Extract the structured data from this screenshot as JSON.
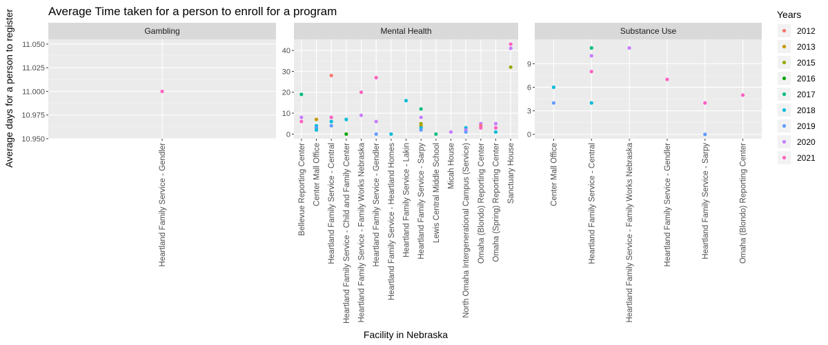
{
  "chart_data": {
    "type": "scatter",
    "title": "Average Time taken for a person to enroll for a program",
    "xlabel": "Facility in Nebraska",
    "ylabel": "Average days for a person to register",
    "legend": {
      "title": "Years",
      "position": "right",
      "entries": [
        {
          "label": "2012",
          "color": "#F8766D"
        },
        {
          "label": "2013",
          "color": "#C49A00"
        },
        {
          "label": "2015",
          "color": "#99A800"
        },
        {
          "label": "2016",
          "color": "#00A600"
        },
        {
          "label": "2017",
          "color": "#00BF7D"
        },
        {
          "label": "2018",
          "color": "#00BCD8"
        },
        {
          "label": "2019",
          "color": "#619CFF"
        },
        {
          "label": "2020",
          "color": "#C77CFF"
        },
        {
          "label": "2021",
          "color": "#FF61C3"
        }
      ]
    },
    "panels": [
      {
        "name": "Gambling",
        "ylim": [
          10.95,
          11.055
        ],
        "yticks": [
          "11.050",
          "11.025",
          "11.000",
          "10.975",
          "10.950"
        ],
        "ytick_values": [
          11.05,
          11.025,
          11.0,
          10.975,
          10.95
        ],
        "categories": [
          "Heartland Family Service - Gendler"
        ],
        "points": [
          {
            "category": "Heartland Family Service - Gendler",
            "year": "2021",
            "value": 11.0
          }
        ]
      },
      {
        "name": "Mental Health",
        "ylim": [
          -2.2,
          45.3
        ],
        "yticks": [
          "40",
          "30",
          "20",
          "10",
          "0"
        ],
        "ytick_values": [
          40,
          30,
          20,
          10,
          0
        ],
        "categories": [
          "Bellevue Reporting Center",
          "Center Mall Office",
          "Heartland Family Service - Central",
          "Heartland Family Service - Child and Family Center",
          "Heartland Family Service - Family Works Nebraska",
          "Heartland Family Service - Gendler",
          "Heartland Family Service - Heartland Homes",
          "Heartland Family Service - Lakin",
          "Heartland Family Service - Sarpy",
          "Lewis Central Middle School",
          "Micah House",
          "North Omaha Intergenerational Campus (Service)",
          "Omaha (Blondo) Reporting Center",
          "Omaha (Spring) Reporting Center",
          "Sanctuary House"
        ],
        "points": [
          {
            "category": "Bellevue Reporting Center",
            "year": "2017",
            "value": 19
          },
          {
            "category": "Bellevue Reporting Center",
            "year": "2020",
            "value": 8
          },
          {
            "category": "Bellevue Reporting Center",
            "year": "2021",
            "value": 6
          },
          {
            "category": "Center Mall Office",
            "year": "2013",
            "value": 7
          },
          {
            "category": "Center Mall Office",
            "year": "2018",
            "value": 4
          },
          {
            "category": "Center Mall Office",
            "year": "2019",
            "value": 3
          },
          {
            "category": "Center Mall Office",
            "year": "2018",
            "value": 2
          },
          {
            "category": "Heartland Family Service - Central",
            "year": "2012",
            "value": 28
          },
          {
            "category": "Heartland Family Service - Central",
            "year": "2021",
            "value": 8
          },
          {
            "category": "Heartland Family Service - Central",
            "year": "2018",
            "value": 6
          },
          {
            "category": "Heartland Family Service - Central",
            "year": "2019",
            "value": 4
          },
          {
            "category": "Heartland Family Service - Child and Family Center",
            "year": "2018",
            "value": 7
          },
          {
            "category": "Heartland Family Service - Child and Family Center",
            "year": "2016",
            "value": 0
          },
          {
            "category": "Heartland Family Service - Family Works Nebraska",
            "year": "2021",
            "value": 20
          },
          {
            "category": "Heartland Family Service - Family Works Nebraska",
            "year": "2020",
            "value": 9
          },
          {
            "category": "Heartland Family Service - Gendler",
            "year": "2021",
            "value": 27
          },
          {
            "category": "Heartland Family Service - Gendler",
            "year": "2020",
            "value": 6
          },
          {
            "category": "Heartland Family Service - Gendler",
            "year": "2019",
            "value": 0
          },
          {
            "category": "Heartland Family Service - Heartland Homes",
            "year": "2018",
            "value": 0
          },
          {
            "category": "Heartland Family Service - Lakin",
            "year": "2018",
            "value": 16
          },
          {
            "category": "Heartland Family Service - Sarpy",
            "year": "2017",
            "value": 12
          },
          {
            "category": "Heartland Family Service - Sarpy",
            "year": "2020",
            "value": 8
          },
          {
            "category": "Heartland Family Service - Sarpy",
            "year": "2015",
            "value": 5
          },
          {
            "category": "Heartland Family Service - Sarpy",
            "year": "2013",
            "value": 4
          },
          {
            "category": "Heartland Family Service - Sarpy",
            "year": "2018",
            "value": 3
          },
          {
            "category": "Heartland Family Service - Sarpy",
            "year": "2019",
            "value": 2
          },
          {
            "category": "Lewis Central Middle School",
            "year": "2017",
            "value": 0
          },
          {
            "category": "Micah House",
            "year": "2020",
            "value": 1
          },
          {
            "category": "North Omaha Intergenerational Campus (Service)",
            "year": "2018",
            "value": 3
          },
          {
            "category": "North Omaha Intergenerational Campus (Service)",
            "year": "2020",
            "value": 2
          },
          {
            "category": "North Omaha Intergenerational Campus (Service)",
            "year": "2019",
            "value": 1
          },
          {
            "category": "Omaha (Blondo) Reporting Center",
            "year": "2020",
            "value": 5
          },
          {
            "category": "Omaha (Blondo) Reporting Center",
            "year": "2012",
            "value": 4
          },
          {
            "category": "Omaha (Blondo) Reporting Center",
            "year": "2021",
            "value": 3
          },
          {
            "category": "Omaha (Spring) Reporting Center",
            "year": "2020",
            "value": 5
          },
          {
            "category": "Omaha (Spring) Reporting Center",
            "year": "2021",
            "value": 3
          },
          {
            "category": "Omaha (Spring) Reporting Center",
            "year": "2018",
            "value": 1
          },
          {
            "category": "Sanctuary House",
            "year": "2021",
            "value": 43
          },
          {
            "category": "Sanctuary House",
            "year": "2020",
            "value": 41
          },
          {
            "category": "Sanctuary House",
            "year": "2015",
            "value": 32
          }
        ]
      },
      {
        "name": "Substance Use",
        "ylim": [
          -0.55,
          12.1
        ],
        "yticks": [
          "9",
          "6",
          "3",
          "0"
        ],
        "ytick_values": [
          9,
          6,
          3,
          0
        ],
        "categories": [
          "Center Mall Office",
          "Heartland Family Service - Central",
          "Heartland Family Service - Family Works Nebraska",
          "Heartland Family Service - Gendler",
          "Heartland Family Service - Sarpy",
          "Omaha (Blondo) Reporting Center"
        ],
        "points": [
          {
            "category": "Center Mall Office",
            "year": "2018",
            "value": 6
          },
          {
            "category": "Center Mall Office",
            "year": "2019",
            "value": 4
          },
          {
            "category": "Heartland Family Service - Central",
            "year": "2017",
            "value": 11
          },
          {
            "category": "Heartland Family Service - Central",
            "year": "2020",
            "value": 10
          },
          {
            "category": "Heartland Family Service - Central",
            "year": "2021",
            "value": 8
          },
          {
            "category": "Heartland Family Service - Central",
            "year": "2018",
            "value": 4
          },
          {
            "category": "Heartland Family Service - Family Works Nebraska",
            "year": "2020",
            "value": 11
          },
          {
            "category": "Heartland Family Service - Gendler",
            "year": "2021",
            "value": 7
          },
          {
            "category": "Heartland Family Service - Sarpy",
            "year": "2021",
            "value": 4
          },
          {
            "category": "Heartland Family Service - Sarpy",
            "year": "2019",
            "value": 0
          },
          {
            "category": "Omaha (Blondo) Reporting Center",
            "year": "2021",
            "value": 5
          }
        ]
      }
    ]
  }
}
